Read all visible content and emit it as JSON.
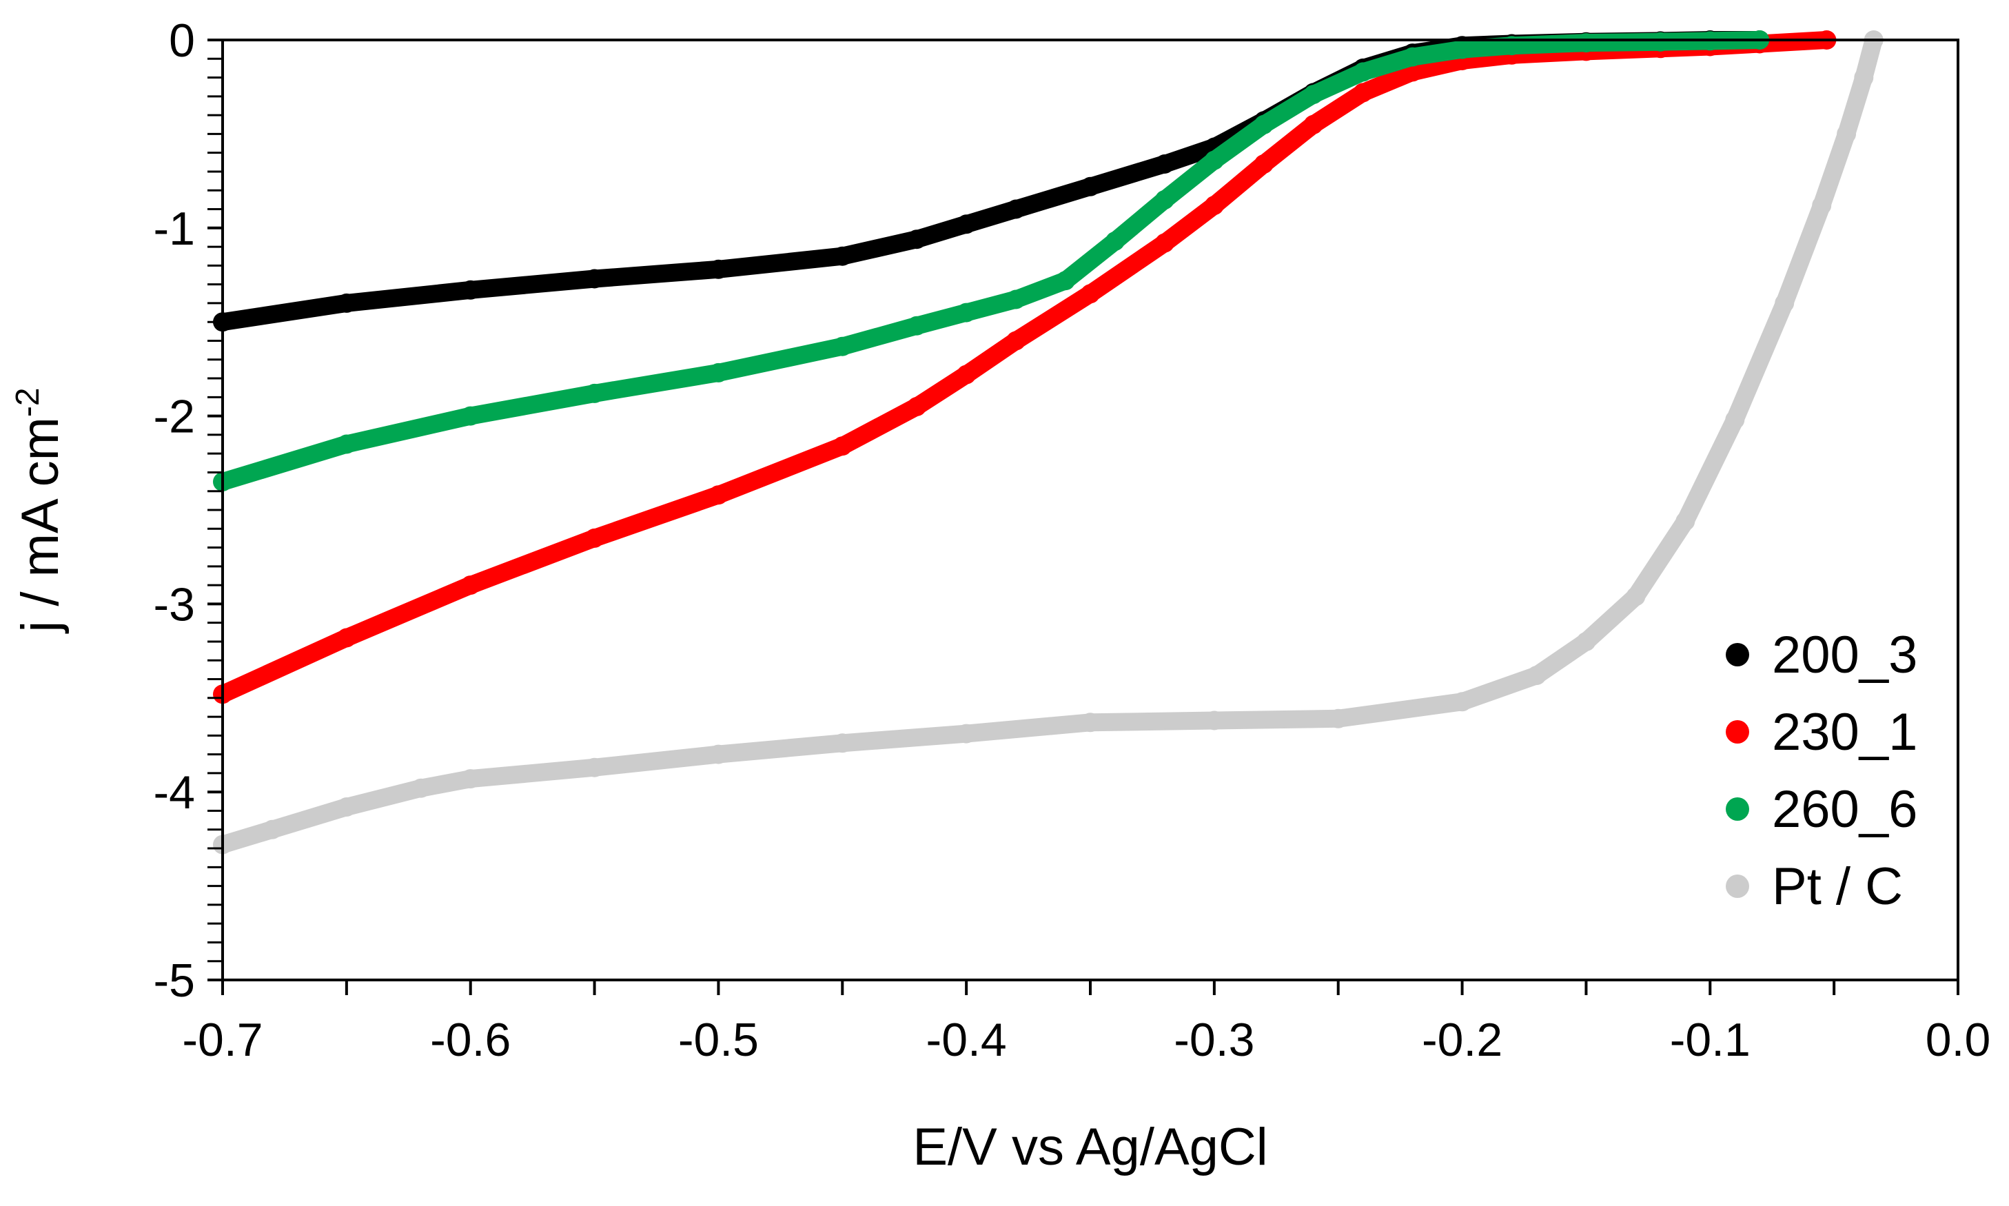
{
  "chart_data": {
    "type": "line",
    "title": "",
    "xlabel": "E/V vs Ag/AgCl",
    "ylabel": {
      "main": "j / mA cm",
      "superscript": "-2"
    },
    "xlim": [
      -0.7,
      0.0
    ],
    "ylim": [
      -5,
      0
    ],
    "x_ticks": [
      -0.7,
      -0.6,
      -0.5,
      -0.4,
      -0.3,
      -0.2,
      -0.1,
      0.0
    ],
    "x_tick_labels": [
      "-0.7",
      "-0.6",
      "-0.5",
      "-0.4",
      "-0.3",
      "-0.2",
      "-0.1",
      "0.0"
    ],
    "y_ticks": [
      0,
      -1,
      -2,
      -3,
      -4,
      -5
    ],
    "y_tick_labels": [
      "0",
      "-1",
      "-2",
      "-3",
      "-4",
      "-5"
    ],
    "grid": false,
    "legend_position": "bottom-right",
    "series": [
      {
        "name": "200_3",
        "color": "#000000",
        "x": [
          -0.7,
          -0.65,
          -0.6,
          -0.55,
          -0.5,
          -0.45,
          -0.42,
          -0.4,
          -0.38,
          -0.35,
          -0.32,
          -0.3,
          -0.28,
          -0.26,
          -0.24,
          -0.22,
          -0.2,
          -0.18,
          -0.15,
          -0.12,
          -0.1,
          -0.08
        ],
        "y": [
          -1.5,
          -1.4,
          -1.33,
          -1.27,
          -1.22,
          -1.15,
          -1.06,
          -0.98,
          -0.9,
          -0.78,
          -0.66,
          -0.57,
          -0.43,
          -0.28,
          -0.15,
          -0.07,
          -0.03,
          -0.02,
          -0.01,
          -0.005,
          0.0,
          0.0
        ]
      },
      {
        "name": "230_1",
        "color": "#ff0000",
        "x": [
          -0.7,
          -0.65,
          -0.6,
          -0.55,
          -0.5,
          -0.45,
          -0.42,
          -0.4,
          -0.38,
          -0.35,
          -0.32,
          -0.3,
          -0.28,
          -0.26,
          -0.24,
          -0.22,
          -0.2,
          -0.18,
          -0.15,
          -0.12,
          -0.1,
          -0.08,
          -0.053
        ],
        "y": [
          -3.48,
          -3.18,
          -2.9,
          -2.65,
          -2.42,
          -2.16,
          -1.95,
          -1.78,
          -1.6,
          -1.35,
          -1.08,
          -0.88,
          -0.66,
          -0.45,
          -0.28,
          -0.17,
          -0.11,
          -0.08,
          -0.06,
          -0.045,
          -0.035,
          -0.02,
          0.0
        ]
      },
      {
        "name": "260_6",
        "color": "#00a651",
        "x": [
          -0.7,
          -0.65,
          -0.6,
          -0.55,
          -0.5,
          -0.45,
          -0.42,
          -0.4,
          -0.38,
          -0.36,
          -0.34,
          -0.32,
          -0.3,
          -0.28,
          -0.26,
          -0.24,
          -0.22,
          -0.2,
          -0.18,
          -0.15,
          -0.12,
          -0.1,
          -0.08
        ],
        "y": [
          -2.35,
          -2.15,
          -2.0,
          -1.88,
          -1.77,
          -1.63,
          -1.52,
          -1.45,
          -1.38,
          -1.28,
          -1.07,
          -0.85,
          -0.64,
          -0.45,
          -0.29,
          -0.17,
          -0.09,
          -0.05,
          -0.03,
          -0.015,
          -0.01,
          -0.005,
          0.0
        ]
      },
      {
        "name": "Pt / C",
        "color": "#cccccc",
        "x": [
          -0.7,
          -0.68,
          -0.65,
          -0.62,
          -0.6,
          -0.55,
          -0.5,
          -0.45,
          -0.4,
          -0.35,
          -0.3,
          -0.25,
          -0.2,
          -0.17,
          -0.15,
          -0.13,
          -0.11,
          -0.09,
          -0.07,
          -0.055,
          -0.045,
          -0.038,
          -0.034
        ],
        "y": [
          -4.28,
          -4.2,
          -4.08,
          -3.98,
          -3.93,
          -3.87,
          -3.8,
          -3.74,
          -3.69,
          -3.63,
          -3.62,
          -3.61,
          -3.52,
          -3.38,
          -3.2,
          -2.96,
          -2.56,
          -2.02,
          -1.4,
          -0.88,
          -0.5,
          -0.2,
          0.0
        ]
      }
    ]
  }
}
